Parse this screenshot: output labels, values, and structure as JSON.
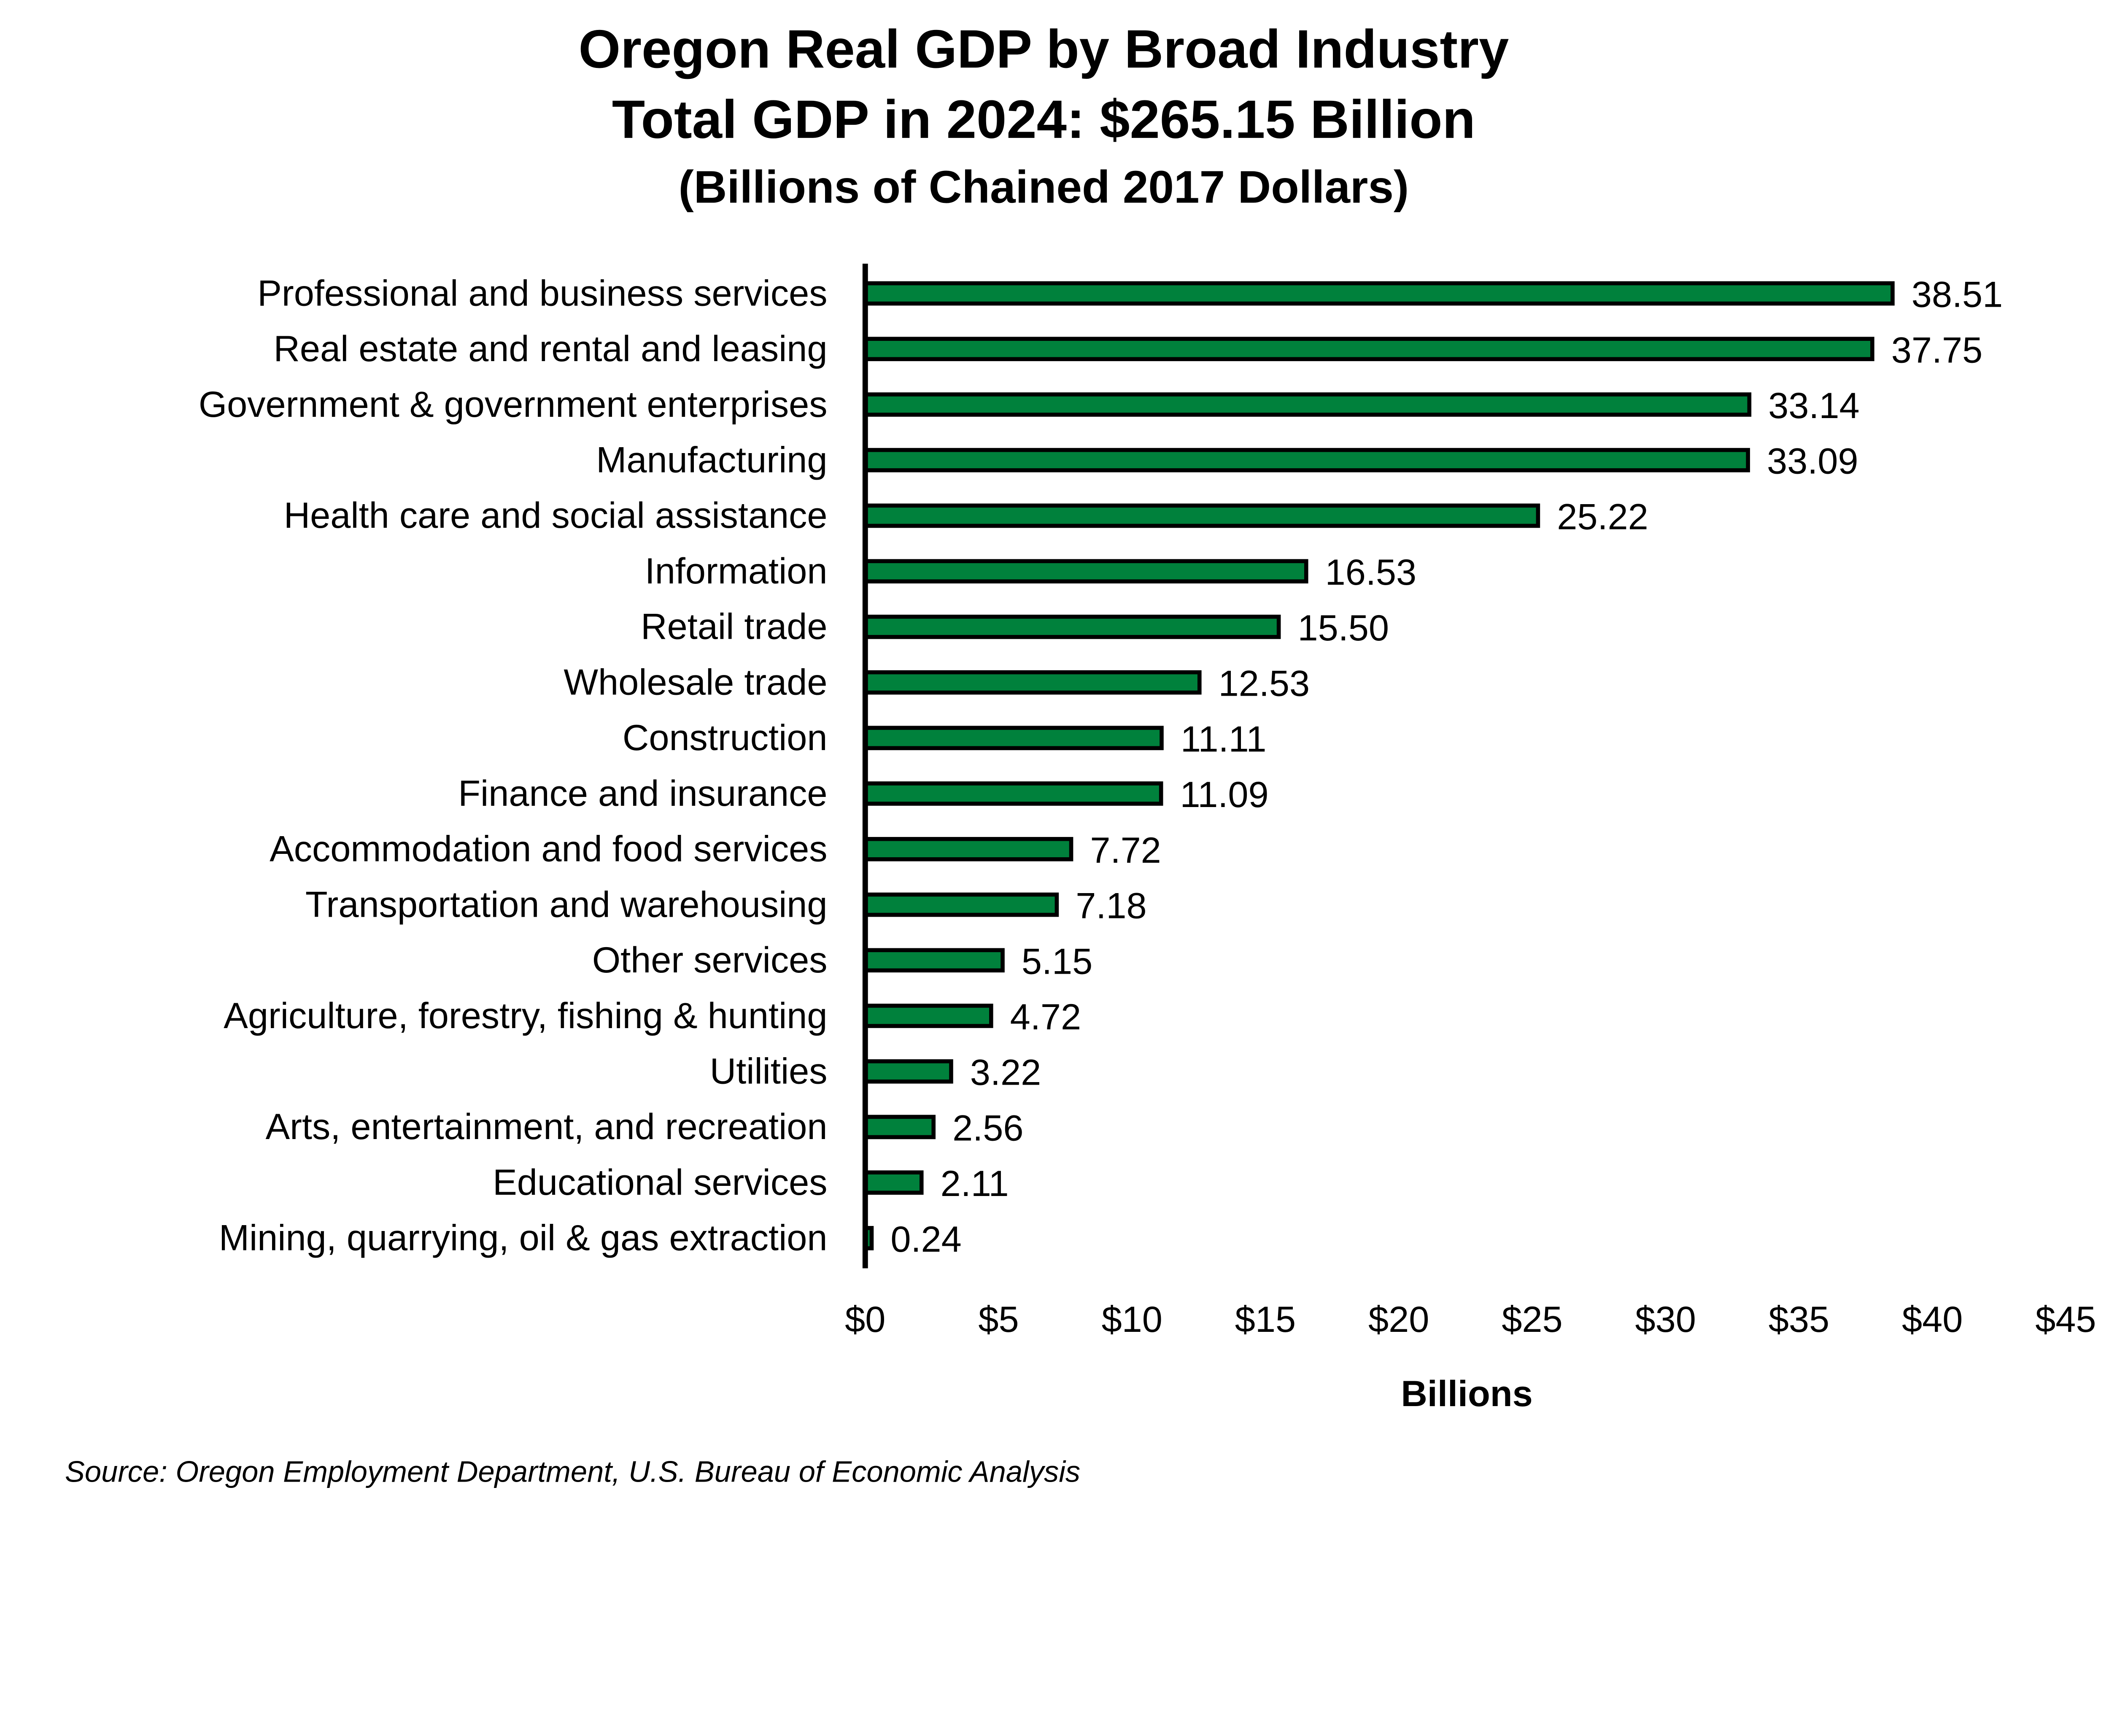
{
  "chart_data": {
    "type": "bar",
    "orientation": "horizontal",
    "title": "Oregon Real GDP by Broad Industry",
    "subtitle": "Total GDP in 2024: $265.15 Billion",
    "subtitle2": "(Billions of Chained 2017 Dollars)",
    "xlabel": "Billions",
    "ylabel": "",
    "xlim": [
      0,
      45
    ],
    "xticks": [
      "$0",
      "$5",
      "$10",
      "$15",
      "$20",
      "$25",
      "$30",
      "$35",
      "$40",
      "$45"
    ],
    "grid": false,
    "bar_color": "#00813C",
    "bar_outline": "#000000",
    "categories": [
      "Professional and business services",
      "Real estate and rental and leasing",
      "Government & government enterprises",
      "Manufacturing",
      "Health care and social assistance",
      "Information",
      "Retail trade",
      "Wholesale trade",
      "Construction",
      "Finance and insurance",
      "Accommodation and food services",
      "Transportation and warehousing",
      "Other services",
      "Agriculture, forestry, fishing & hunting",
      "Utilities",
      "Arts, entertainment, and recreation",
      "Educational services",
      "Mining, quarrying, oil & gas extraction"
    ],
    "values": [
      38.51,
      37.75,
      33.14,
      33.09,
      25.22,
      16.53,
      15.5,
      12.53,
      11.11,
      11.09,
      7.72,
      7.18,
      5.15,
      4.72,
      3.22,
      2.56,
      2.11,
      0.24
    ],
    "value_labels": [
      "38.51",
      "37.75",
      "33.14",
      "33.09",
      "25.22",
      "16.53",
      "15.50",
      "12.53",
      "11.11",
      "11.09",
      "7.72",
      "7.18",
      "5.15",
      "4.72",
      "3.22",
      "2.56",
      "2.11",
      "0.24"
    ]
  },
  "source": "Source: Oregon Employment Department, U.S. Bureau of Economic Analysis"
}
